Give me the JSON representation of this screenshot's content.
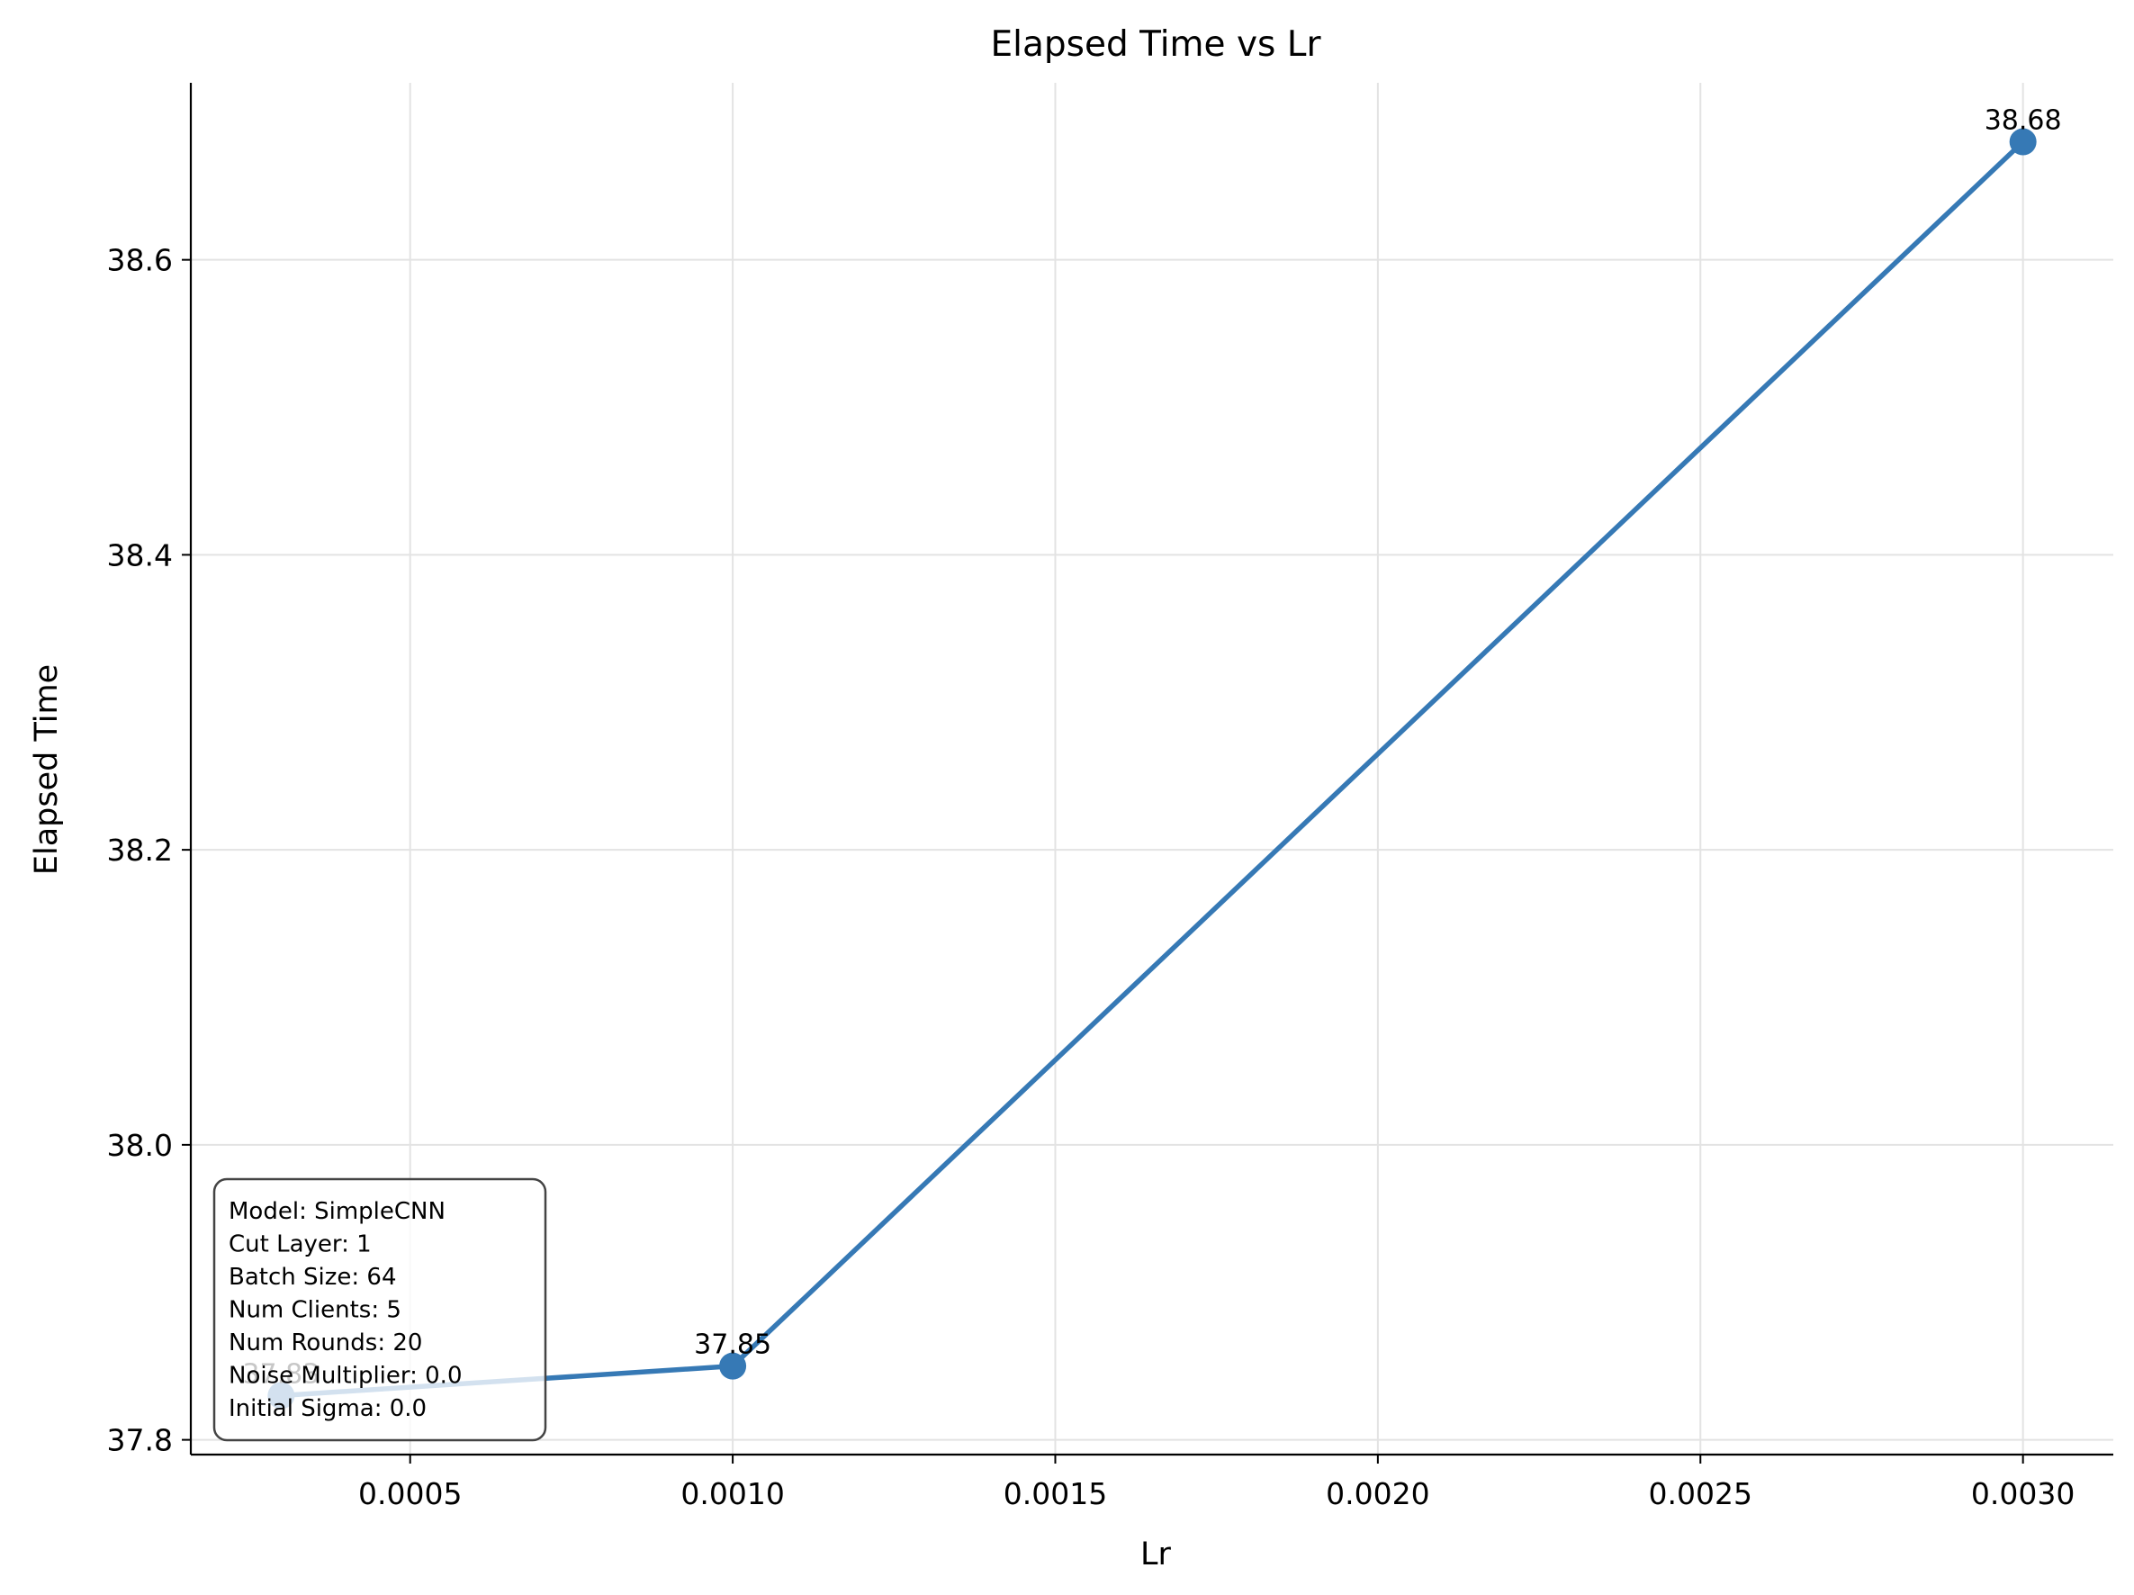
{
  "chart_data": {
    "type": "line",
    "title": "Elapsed Time vs Lr",
    "xlabel": "Lr",
    "ylabel": "Elapsed Time",
    "x": [
      0.0003,
      0.001,
      0.003
    ],
    "series": [
      {
        "values": [
          37.83,
          37.85,
          38.68
        ],
        "data_labels": [
          "37.83",
          "37.85",
          "38.68"
        ]
      }
    ],
    "xlim": [
      0.00016,
      0.00314
    ],
    "ylim": [
      37.79,
      38.72
    ],
    "xticks": [
      0.0005,
      0.001,
      0.0015,
      0.002,
      0.0025,
      0.003
    ],
    "xtick_labels": [
      "0.0005",
      "0.0010",
      "0.0015",
      "0.0020",
      "0.0025",
      "0.0030"
    ],
    "yticks": [
      37.8,
      38.0,
      38.2,
      38.4,
      38.6
    ],
    "ytick_labels": [
      "37.8",
      "38.0",
      "38.2",
      "38.4",
      "38.6"
    ],
    "grid": true,
    "line_color": "#3679b5",
    "info_box": [
      "Model: SimpleCNN",
      "Cut Layer: 1",
      "Batch Size: 64",
      "Num Clients: 5",
      "Num Rounds: 20",
      "Noise Multiplier: 0.0",
      "Initial Sigma: 0.0"
    ]
  }
}
